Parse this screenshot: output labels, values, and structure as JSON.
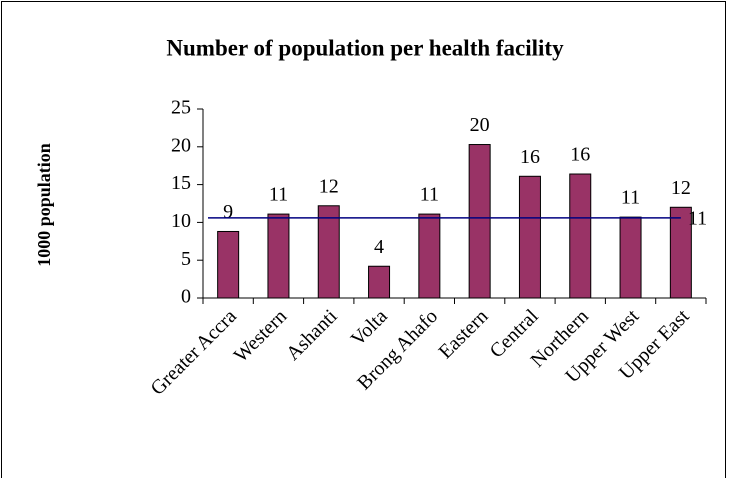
{
  "chart_data": {
    "type": "bar",
    "title": "Number of population per health facility",
    "y_label": "1000 population",
    "categories": [
      "Greater Accra",
      "Western",
      "Ashanti",
      "Volta",
      "Brong Ahafo",
      "Eastern",
      "Central",
      "Northern",
      "Upper West",
      "Upper East"
    ],
    "values": [
      8.8,
      11.1,
      12.2,
      4.2,
      11.1,
      20.3,
      16.1,
      16.4,
      10.7,
      12.0
    ],
    "value_labels": [
      "9",
      "11",
      "12",
      "4",
      "11",
      "20",
      "16",
      "16",
      "11",
      "12"
    ],
    "color": "#993366",
    "reference_line": {
      "value": 10.6,
      "label": "11",
      "color": "#000080"
    },
    "ylim": [
      0,
      25
    ],
    "yticks": [
      0,
      5,
      10,
      15,
      20,
      25
    ]
  }
}
